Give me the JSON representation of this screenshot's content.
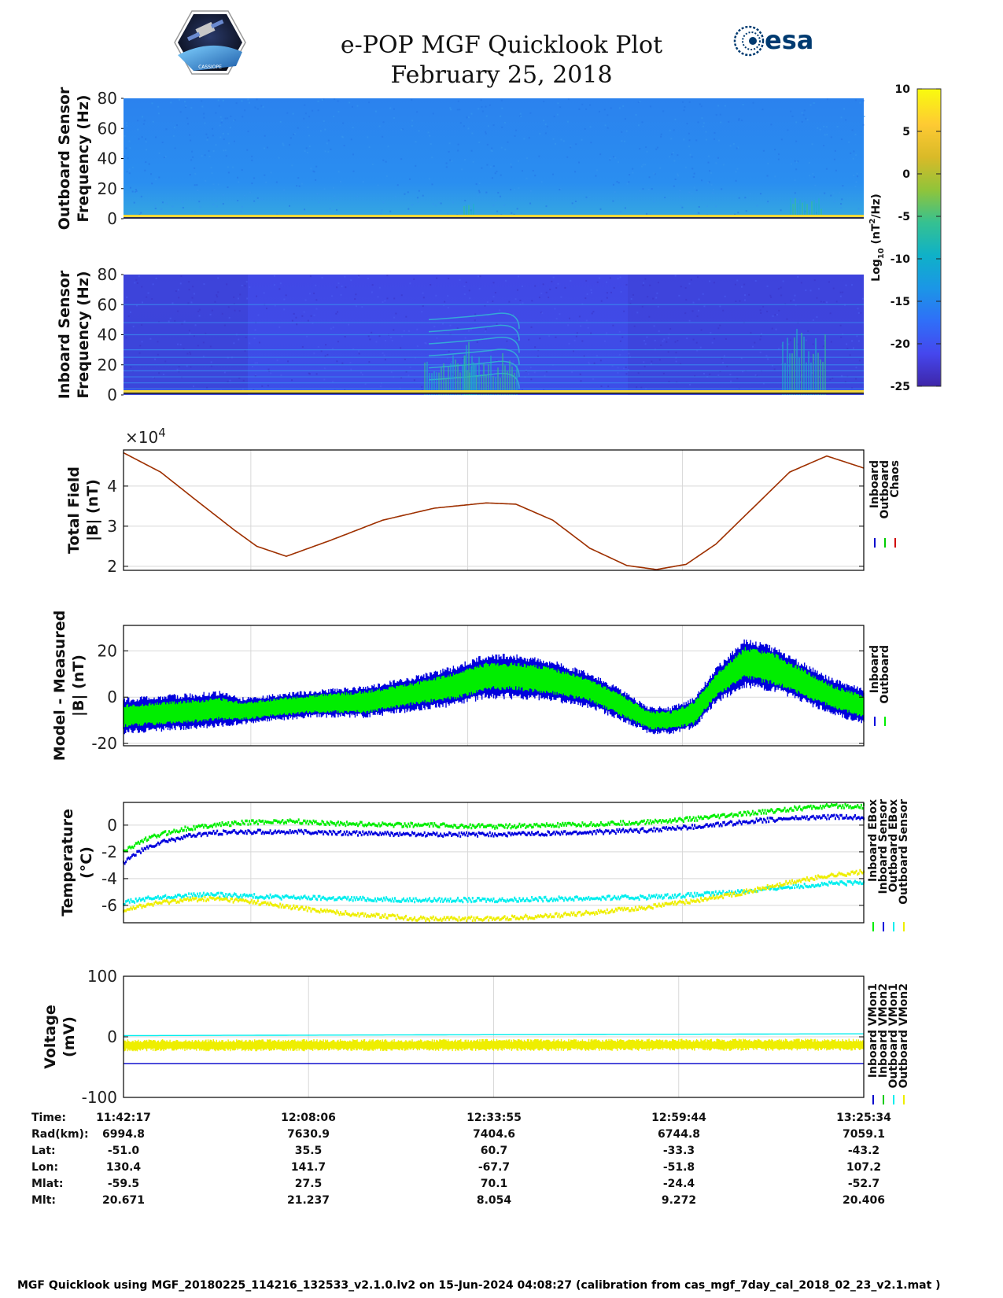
{
  "header": {
    "title": "e-POP MGF Quicklook Plot",
    "date": "February 25, 2018",
    "mission_logo": "cassiope-mission-logo",
    "mission_logo_text": "CASSIOPE",
    "agency_logo": "esa-logo",
    "agency_name": "esa"
  },
  "chart_data": [
    {
      "type": "heatmap",
      "id": "outboard-spectrogram",
      "ylabel": [
        "Outboard Sensor",
        "Frequency (Hz)"
      ],
      "ylim": [
        0,
        80
      ],
      "yticks": [
        0,
        20,
        40,
        60,
        80
      ],
      "description": "spectrogram of outboard magnetometer power, mostly around -15 log10(nT^2/Hz) with a strong band near 0-2 Hz and activity bursts around 12:33 and 13:18"
    },
    {
      "type": "heatmap",
      "id": "inboard-spectrogram",
      "ylabel": [
        "Inboard Sensor",
        "Frequency (Hz)"
      ],
      "ylim": [
        0,
        80
      ],
      "yticks": [
        0,
        20,
        40,
        60,
        80
      ],
      "description": "spectrogram of inboard magnetometer power, background around -20 with horizontal interference lines and bursts near 12:25-12:35 and 13:18"
    },
    {
      "type": "line",
      "id": "total-field",
      "ylabel": [
        "Total Field",
        "|B| (nT)"
      ],
      "ylim": [
        1.9,
        4.9
      ],
      "yticks": [
        2,
        3,
        4
      ],
      "exponent_label": "×10",
      "exponent_power": "4",
      "x_fraction": [
        0.0,
        0.05,
        0.1,
        0.15,
        0.18,
        0.22,
        0.28,
        0.35,
        0.42,
        0.49,
        0.53,
        0.58,
        0.63,
        0.68,
        0.72,
        0.76,
        0.8,
        0.85,
        0.9,
        0.95,
        1.0
      ],
      "series": [
        {
          "name": "Inboard",
          "color": "#0000cc",
          "values": [
            4.83,
            4.35,
            3.62,
            2.9,
            2.5,
            2.25,
            2.65,
            3.15,
            3.45,
            3.58,
            3.55,
            3.15,
            2.45,
            2.02,
            1.92,
            2.05,
            2.55,
            3.45,
            4.35,
            4.75,
            4.45
          ]
        },
        {
          "name": "Outboard",
          "color": "#00cc00",
          "values": [
            4.83,
            4.35,
            3.62,
            2.9,
            2.5,
            2.25,
            2.65,
            3.15,
            3.45,
            3.58,
            3.55,
            3.15,
            2.45,
            2.02,
            1.92,
            2.05,
            2.55,
            3.45,
            4.35,
            4.75,
            4.45
          ]
        },
        {
          "name": "Chaos",
          "color": "#d00000",
          "values": [
            4.83,
            4.35,
            3.62,
            2.9,
            2.5,
            2.25,
            2.65,
            3.15,
            3.45,
            3.58,
            3.55,
            3.15,
            2.45,
            2.02,
            1.92,
            2.05,
            2.55,
            3.45,
            4.35,
            4.75,
            4.45
          ]
        }
      ]
    },
    {
      "type": "line",
      "id": "model-measured",
      "ylabel": [
        "Model - Measured",
        "|B| (nT)"
      ],
      "ylim": [
        -21,
        31
      ],
      "yticks": [
        -20,
        0,
        20
      ],
      "x_fraction": [
        0.0,
        0.05,
        0.1,
        0.13,
        0.16,
        0.25,
        0.33,
        0.4,
        0.45,
        0.49,
        0.53,
        0.58,
        0.63,
        0.67,
        0.71,
        0.74,
        0.77,
        0.8,
        0.84,
        0.88,
        0.92,
        0.96,
        1.0
      ],
      "series": [
        {
          "name": "Inboard",
          "color": "#0000dd",
          "band_center": [
            -8,
            -7,
            -6,
            -5,
            -6,
            -3,
            -2,
            2,
            5,
            9,
            9,
            7,
            3,
            -3,
            -10,
            -10,
            -7,
            5,
            15,
            12,
            6,
            0,
            -4
          ],
          "band_half_width": [
            8,
            8,
            8,
            8,
            6,
            6,
            7,
            8,
            9,
            10,
            10,
            9,
            8,
            7,
            6,
            6,
            7,
            8,
            11,
            10,
            9,
            8,
            8
          ]
        },
        {
          "name": "Outboard",
          "color": "#00ee00",
          "band_center": [
            -8,
            -7,
            -6,
            -5,
            -6,
            -3,
            -2,
            2,
            5,
            9,
            9,
            7,
            3,
            -3,
            -10,
            -10,
            -7,
            5,
            15,
            12,
            6,
            0,
            -4
          ],
          "band_half_width": [
            5,
            5,
            5,
            5,
            4,
            4,
            5,
            5,
            6,
            6,
            6,
            6,
            5,
            5,
            4,
            4,
            5,
            5,
            7,
            7,
            6,
            5,
            5
          ]
        }
      ]
    },
    {
      "type": "line",
      "id": "temperature",
      "ylabel": [
        "Temperature",
        "(°C)"
      ],
      "ylim": [
        -7.3,
        1.7
      ],
      "yticks": [
        -6,
        -4,
        -2,
        0
      ],
      "x_fraction": [
        0.0,
        0.02,
        0.05,
        0.08,
        0.12,
        0.17,
        0.22,
        0.3,
        0.4,
        0.5,
        0.6,
        0.7,
        0.78,
        0.85,
        0.9,
        0.95,
        1.0
      ],
      "series": [
        {
          "name": "Inboard EBox",
          "color": "#00ee00",
          "values": [
            -2.0,
            -1.3,
            -0.7,
            -0.3,
            0.0,
            0.2,
            0.3,
            0.1,
            0.0,
            -0.1,
            0.0,
            0.2,
            0.5,
            0.9,
            1.2,
            1.4,
            1.4
          ]
        },
        {
          "name": "Inboard Sensor",
          "color": "#0000dd",
          "values": [
            -2.8,
            -2.0,
            -1.3,
            -0.9,
            -0.6,
            -0.5,
            -0.5,
            -0.6,
            -0.7,
            -0.7,
            -0.6,
            -0.4,
            -0.1,
            0.3,
            0.5,
            0.6,
            0.6
          ]
        },
        {
          "name": "Outboard EBox",
          "color": "#00eeee",
          "values": [
            -5.8,
            -5.6,
            -5.4,
            -5.3,
            -5.2,
            -5.3,
            -5.4,
            -5.5,
            -5.6,
            -5.6,
            -5.5,
            -5.4,
            -5.2,
            -4.9,
            -4.6,
            -4.4,
            -4.3
          ]
        },
        {
          "name": "Outboard Sensor",
          "color": "#eeee00",
          "values": [
            -6.3,
            -6.1,
            -5.8,
            -5.6,
            -5.5,
            -5.7,
            -6.1,
            -6.6,
            -7.0,
            -7.0,
            -6.7,
            -6.2,
            -5.6,
            -4.9,
            -4.3,
            -3.8,
            -3.5
          ]
        }
      ]
    },
    {
      "type": "line",
      "id": "voltage",
      "ylabel": [
        "Voltage",
        "(mV)"
      ],
      "ylim": [
        -100,
        100
      ],
      "yticks": [
        -100,
        0,
        100
      ],
      "x_fraction": [
        0.0,
        1.0
      ],
      "series": [
        {
          "name": "Inboard VMon1",
          "color": "#0000cc",
          "values": [
            -44,
            -44
          ]
        },
        {
          "name": "Inboard VMon2",
          "color": "#00cc00",
          "values": [
            -17,
            -17
          ]
        },
        {
          "name": "Outboard VMon1",
          "color": "#00eeee",
          "values": [
            2,
            5
          ]
        },
        {
          "name": "Outboard VMon2",
          "color": "#eeee00",
          "band_center": [
            -14,
            -13
          ],
          "band_half_width": [
            10,
            10
          ]
        }
      ]
    }
  ],
  "colorbar": {
    "ticks": [
      "10",
      "5",
      "0",
      "-5",
      "-10",
      "-15",
      "-20",
      "-25"
    ],
    "label_base": "Log",
    "label_sub": "10",
    "label_unit_start": " (nT",
    "label_sup": "2",
    "label_unit_end": "/Hz)"
  },
  "orbit_table": {
    "row_labels": [
      "Time:",
      "Rad(km):",
      "Lat:",
      "Lon:",
      "Mlat:",
      "Mlt:"
    ],
    "columns": [
      [
        "11:42:17",
        "6994.8",
        "-51.0",
        "130.4",
        "-59.5",
        "20.671"
      ],
      [
        "12:08:06",
        "7630.9",
        "35.5",
        "141.7",
        "27.5",
        "21.237"
      ],
      [
        "12:33:55",
        "7404.6",
        "60.7",
        "-67.7",
        "70.1",
        "8.054"
      ],
      [
        "12:59:44",
        "6744.8",
        "-33.3",
        "-51.8",
        "-24.4",
        "9.272"
      ],
      [
        "13:25:34",
        "7059.1",
        "-43.2",
        "107.2",
        "-52.7",
        "20.406"
      ]
    ]
  },
  "footer": "MGF Quicklook using MGF_20180225_114216_132533_v2.1.0.lv2 on 15-Jun-2024 04:08:27 (calibration from cas_mgf_7day_cal_2018_02_23_v2.1.mat )",
  "colors": {
    "grid": "#d8d8d8",
    "axis": "#000000",
    "colormap": [
      "#3e26a8",
      "#4547ee",
      "#2f6ff8",
      "#1b96e6",
      "#0fb1c8",
      "#35c191",
      "#90c43a",
      "#d9ba28",
      "#feca33",
      "#f9fb0e"
    ]
  }
}
